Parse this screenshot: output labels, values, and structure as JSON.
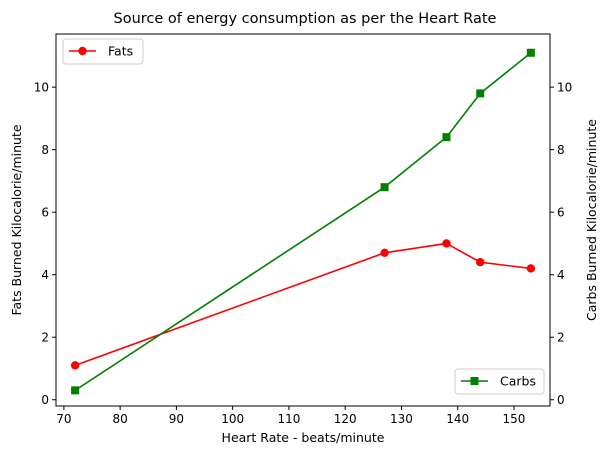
{
  "chart_data": {
    "type": "line",
    "title": "Source of energy consumption as per the Heart Rate",
    "xlabel": "Heart Rate - beats/minute",
    "ylabel_left": "Fats Burned Kilocalorie/minute",
    "ylabel_right": "Carbs Burned Kilocalorie/minute",
    "x": [
      72,
      127,
      138,
      144,
      153
    ],
    "xlim": [
      68.6,
      156.4
    ],
    "ylim_left": [
      -0.2,
      11.7
    ],
    "ylim_right": [
      -0.2,
      11.7
    ],
    "xticks": [
      70,
      80,
      90,
      100,
      110,
      120,
      130,
      140,
      150
    ],
    "yticks_left": [
      0,
      2,
      4,
      6,
      8,
      10
    ],
    "yticks_right": [
      0,
      2,
      4,
      6,
      8,
      10
    ],
    "grid": false,
    "series": [
      {
        "name": "Fats",
        "axis": "left",
        "values": [
          1.1,
          4.7,
          5.0,
          4.4,
          4.2
        ],
        "color": "#ff0000",
        "marker": "circle",
        "legend_position": "upper-left"
      },
      {
        "name": "Carbs",
        "axis": "right",
        "values": [
          0.3,
          6.8,
          8.4,
          9.8,
          11.1
        ],
        "color": "#008000",
        "marker": "square",
        "legend_position": "lower-right"
      }
    ]
  }
}
